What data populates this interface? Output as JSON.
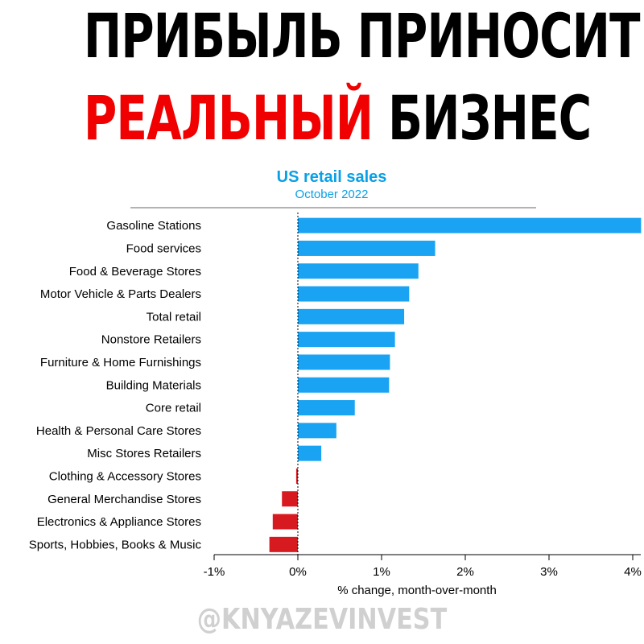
{
  "headline": {
    "line1": "ПРИБЫЛЬ ПРИНОСИТ",
    "line2_accent": "РЕАЛЬНЫЙ",
    "line2_rest": "БИЗНЕС"
  },
  "watermark": "@KNYAZEVINVEST",
  "colors": {
    "headline": "#000000",
    "accent": "#f00000",
    "title": "#0aa0e6",
    "positive_bar": "#1aa3f2",
    "negative_bar": "#d71920",
    "watermark": "#d0d0d0"
  },
  "chart_data": {
    "type": "bar",
    "orientation": "horizontal",
    "title": "US retail sales",
    "subtitle": "October 2022",
    "xlabel": "% change, month-over-month",
    "ylabel": "",
    "xlim": [
      -1,
      4
    ],
    "xticks": [
      -1,
      0,
      1,
      2,
      3,
      4
    ],
    "xtick_labels": [
      "-1%",
      "0%",
      "1%",
      "2%",
      "3%",
      "4%"
    ],
    "grid": false,
    "categories": [
      "Gasoline Stations",
      "Food services",
      "Food & Beverage Stores",
      "Motor Vehicle & Parts Dealers",
      "Total retail",
      "Nonstore Retailers",
      "Furniture & Home Furnishings",
      "Building Materials",
      "Core retail",
      "Health & Personal Care Stores",
      "Misc Stores Retailers",
      "Clothing & Accessory Stores",
      "General Merchandise Stores",
      "Electronics & Appliance Stores",
      "Sports, Hobbies, Books & Music"
    ],
    "values": [
      4.1,
      1.64,
      1.44,
      1.33,
      1.27,
      1.16,
      1.1,
      1.09,
      0.68,
      0.46,
      0.28,
      -0.02,
      -0.19,
      -0.3,
      -0.34
    ]
  }
}
